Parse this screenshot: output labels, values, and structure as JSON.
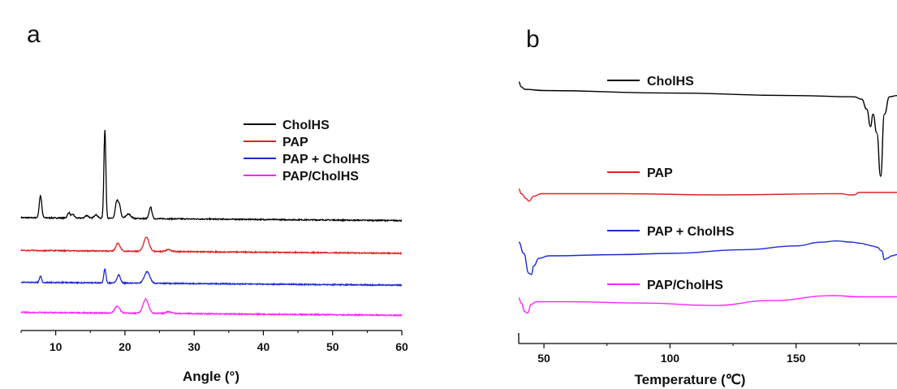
{
  "chart_data": [
    {
      "panel_label": "a",
      "type": "line",
      "title": "",
      "xlabel": "Angle (°)",
      "ylabel": "",
      "xlim": [
        5,
        60
      ],
      "xticks": [
        10,
        20,
        30,
        40,
        50,
        60
      ],
      "y_axis_shown": false,
      "grid": false,
      "legend_position": "top-right",
      "series": [
        {
          "name": "CholHS",
          "color": "#000000",
          "offset": 0,
          "peaks": [
            {
              "x": 7.8,
              "h": 0.25,
              "w": 0.18
            },
            {
              "x": 11.9,
              "h": 0.06,
              "w": 0.2
            },
            {
              "x": 12.5,
              "h": 0.04,
              "w": 0.2
            },
            {
              "x": 14.5,
              "h": 0.03,
              "w": 0.25
            },
            {
              "x": 15.8,
              "h": 0.04,
              "w": 0.25
            },
            {
              "x": 17.1,
              "h": 1.0,
              "w": 0.14
            },
            {
              "x": 18.8,
              "h": 0.18,
              "w": 0.2
            },
            {
              "x": 19.2,
              "h": 0.14,
              "w": 0.2
            },
            {
              "x": 20.5,
              "h": 0.05,
              "w": 0.35
            },
            {
              "x": 23.7,
              "h": 0.13,
              "w": 0.2
            }
          ]
        },
        {
          "name": "PAP",
          "color": "#dd2222",
          "offset": -0.37,
          "peaks": [
            {
              "x": 19.0,
              "h": 0.09,
              "w": 0.3
            },
            {
              "x": 23.1,
              "h": 0.16,
              "w": 0.38
            },
            {
              "x": 26.3,
              "h": 0.02,
              "w": 0.4
            }
          ]
        },
        {
          "name": "PAP + CholHS",
          "color": "#1a2ad6",
          "offset": -0.73,
          "peaks": [
            {
              "x": 7.8,
              "h": 0.07,
              "w": 0.15
            },
            {
              "x": 17.1,
              "h": 0.16,
              "w": 0.15
            },
            {
              "x": 19.1,
              "h": 0.09,
              "w": 0.25
            },
            {
              "x": 23.2,
              "h": 0.13,
              "w": 0.4
            }
          ]
        },
        {
          "name": "PAP/CholHS",
          "color": "#ff22ff",
          "offset": -1.07,
          "peaks": [
            {
              "x": 18.9,
              "h": 0.08,
              "w": 0.35
            },
            {
              "x": 23.0,
              "h": 0.16,
              "w": 0.4
            },
            {
              "x": 26.3,
              "h": 0.02,
              "w": 0.4
            }
          ]
        }
      ]
    },
    {
      "panel_label": "b",
      "type": "line",
      "title": "",
      "xlabel": "Temperature (℃)",
      "ylabel": "",
      "xlim": [
        40,
        190
      ],
      "xticks": [
        50,
        100,
        150
      ],
      "y_axis_shown": false,
      "grid": false,
      "legend_position": "inline",
      "series": [
        {
          "name": "CholHS",
          "color": "#000000",
          "points": [
            [
              40,
              0.06
            ],
            [
              41,
              0.02
            ],
            [
              42.5,
              0.0
            ],
            [
              50,
              -0.01
            ],
            [
              100,
              -0.03
            ],
            [
              150,
              -0.05
            ],
            [
              173,
              -0.06
            ],
            [
              176,
              -0.08
            ],
            [
              178,
              -0.16
            ],
            [
              179.5,
              -0.3
            ],
            [
              180.5,
              -0.2
            ],
            [
              182,
              -0.35
            ],
            [
              183.5,
              -0.7
            ],
            [
              185,
              -0.2
            ],
            [
              187,
              -0.06
            ],
            [
              190,
              -0.05
            ]
          ]
        },
        {
          "name": "PAP",
          "color": "#dd2222",
          "points": [
            [
              40,
              -0.8
            ],
            [
              41,
              -0.84
            ],
            [
              43,
              -0.88
            ],
            [
              44,
              -0.9
            ],
            [
              46,
              -0.86
            ],
            [
              49,
              -0.84
            ],
            [
              80,
              -0.84
            ],
            [
              120,
              -0.85
            ],
            [
              168,
              -0.84
            ],
            [
              171,
              -0.85
            ],
            [
              173,
              -0.85
            ],
            [
              175,
              -0.83
            ],
            [
              178,
              -0.83
            ],
            [
              190,
              -0.83
            ]
          ]
        },
        {
          "name": "PAP + CholHS",
          "color": "#1a2ad6",
          "points": [
            [
              40,
              -1.23
            ],
            [
              42,
              -1.32
            ],
            [
              44,
              -1.48
            ],
            [
              45,
              -1.49
            ],
            [
              46,
              -1.42
            ],
            [
              48,
              -1.36
            ],
            [
              52,
              -1.34
            ],
            [
              80,
              -1.33
            ],
            [
              100,
              -1.32
            ],
            [
              130,
              -1.29
            ],
            [
              150,
              -1.26
            ],
            [
              160,
              -1.23
            ],
            [
              166,
              -1.22
            ],
            [
              172,
              -1.23
            ],
            [
              176,
              -1.24
            ],
            [
              178,
              -1.25
            ],
            [
              180,
              -1.26
            ],
            [
              182,
              -1.27
            ],
            [
              184,
              -1.3
            ],
            [
              185,
              -1.37
            ],
            [
              186,
              -1.36
            ],
            [
              188,
              -1.34
            ],
            [
              190,
              -1.33
            ]
          ]
        },
        {
          "name": "PAP/CholHS",
          "color": "#ff22ff",
          "points": [
            [
              40,
              -1.68
            ],
            [
              41,
              -1.72
            ],
            [
              42.5,
              -1.79
            ],
            [
              43.5,
              -1.8
            ],
            [
              45,
              -1.73
            ],
            [
              47,
              -1.71
            ],
            [
              60,
              -1.71
            ],
            [
              90,
              -1.72
            ],
            [
              117,
              -1.74
            ],
            [
              140,
              -1.7
            ],
            [
              165,
              -1.66
            ],
            [
              175,
              -1.67
            ],
            [
              190,
              -1.67
            ]
          ]
        }
      ]
    }
  ]
}
